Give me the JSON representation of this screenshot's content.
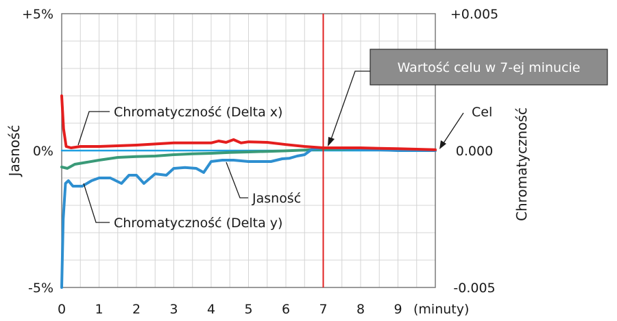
{
  "chart_data": {
    "type": "line",
    "xlabel": "(minuty)",
    "ylabel_left": "Jasność",
    "ylabel_right": "Chromatyczność",
    "x_ticks": [
      "0",
      "1",
      "2",
      "3",
      "4",
      "5",
      "6",
      "7",
      "8",
      "9"
    ],
    "xlim": [
      0,
      10
    ],
    "ylim_left": [
      -5,
      5
    ],
    "ylim_right": [
      -0.005,
      0.005
    ],
    "y_left_ticks": [
      {
        "value": 5,
        "label": "+5%"
      },
      {
        "value": 0,
        "label": "0%"
      },
      {
        "value": -5,
        "label": "-5%"
      }
    ],
    "y_right_ticks": [
      {
        "value": 0.005,
        "label": "+0.005"
      },
      {
        "value": 0,
        "label": "0.000"
      },
      {
        "value": -0.005,
        "label": "-0.005"
      }
    ],
    "grid": true,
    "target_line": {
      "x": 7,
      "color": "#e02020"
    },
    "series": [
      {
        "name": "Chromatyczność (Delta x)",
        "axis": "right",
        "color": "#e41e1e",
        "points": [
          [
            0,
            0.002
          ],
          [
            0.05,
            0.0008
          ],
          [
            0.12,
            0.00015
          ],
          [
            0.25,
            0.0001
          ],
          [
            0.5,
            0.00015
          ],
          [
            1,
            0.00015
          ],
          [
            2,
            0.0002
          ],
          [
            3,
            0.00028
          ],
          [
            3.5,
            0.00028
          ],
          [
            4,
            0.00028
          ],
          [
            4.2,
            0.00035
          ],
          [
            4.4,
            0.0003
          ],
          [
            4.6,
            0.0004
          ],
          [
            4.8,
            0.00028
          ],
          [
            5,
            0.00032
          ],
          [
            5.5,
            0.0003
          ],
          [
            6,
            0.00022
          ],
          [
            6.5,
            0.00015
          ],
          [
            7,
            0.0001
          ],
          [
            7.5,
            0.0001
          ],
          [
            8,
            0.0001
          ],
          [
            8.5,
            8e-05
          ],
          [
            9,
            7e-05
          ],
          [
            9.5,
            5e-05
          ],
          [
            10,
            3e-05
          ]
        ]
      },
      {
        "name": "Jasność",
        "axis": "left",
        "color": "#3a9a78",
        "points": [
          [
            0,
            -0.6
          ],
          [
            0.15,
            -0.65
          ],
          [
            0.35,
            -0.5
          ],
          [
            1,
            -0.35
          ],
          [
            1.5,
            -0.25
          ],
          [
            2,
            -0.22
          ],
          [
            2.5,
            -0.2
          ],
          [
            3,
            -0.15
          ],
          [
            3.5,
            -0.12
          ],
          [
            4,
            -0.1
          ],
          [
            4.5,
            -0.07
          ],
          [
            5,
            -0.05
          ],
          [
            5.5,
            -0.03
          ],
          [
            6,
            -0.01
          ],
          [
            6.5,
            0.02
          ],
          [
            7,
            0.05
          ],
          [
            8,
            0.05
          ],
          [
            9,
            0.02
          ],
          [
            10,
            0.0
          ]
        ]
      },
      {
        "name": "Chromatyczność (Delta y)",
        "axis": "right",
        "color": "#2e8fd0",
        "points": [
          [
            0,
            -0.005
          ],
          [
            0.04,
            -0.0025
          ],
          [
            0.1,
            -0.0012
          ],
          [
            0.18,
            -0.0011
          ],
          [
            0.3,
            -0.0013
          ],
          [
            0.55,
            -0.0013
          ],
          [
            0.8,
            -0.0011
          ],
          [
            1,
            -0.001
          ],
          [
            1.3,
            -0.001
          ],
          [
            1.6,
            -0.0012
          ],
          [
            1.8,
            -0.0009
          ],
          [
            2,
            -0.0009
          ],
          [
            2.2,
            -0.0012
          ],
          [
            2.5,
            -0.00085
          ],
          [
            2.8,
            -0.0009
          ],
          [
            3,
            -0.00065
          ],
          [
            3.3,
            -0.00062
          ],
          [
            3.6,
            -0.00065
          ],
          [
            3.8,
            -0.0008
          ],
          [
            4,
            -0.0004
          ],
          [
            4.3,
            -0.00035
          ],
          [
            4.6,
            -0.00035
          ],
          [
            5,
            -0.0004
          ],
          [
            5.3,
            -0.0004
          ],
          [
            5.6,
            -0.0004
          ],
          [
            5.9,
            -0.0003
          ],
          [
            6.1,
            -0.00028
          ],
          [
            6.3,
            -0.0002
          ],
          [
            6.5,
            -0.00015
          ],
          [
            6.7,
            5e-05
          ],
          [
            7,
            0.0001
          ],
          [
            8,
            5e-05
          ],
          [
            9,
            0.0
          ],
          [
            10,
            0.0
          ]
        ]
      },
      {
        "name": "Cel",
        "axis": "right",
        "color": "#1f9fe0",
        "points": [
          [
            0,
            0
          ],
          [
            10,
            0
          ]
        ]
      }
    ],
    "annotations": [
      {
        "text": "Chromatyczność (Delta x)",
        "series": "Chromatyczność (Delta x)"
      },
      {
        "text": "Jasność",
        "series": "Jasność"
      },
      {
        "text": "Chromatyczność (Delta y)",
        "series": "Chromatyczność (Delta y)"
      },
      {
        "text": "Cel",
        "series": "Cel"
      },
      {
        "text": "Wartość celu w 7-ej minucie",
        "style": "callout-box",
        "x": 7
      }
    ]
  }
}
